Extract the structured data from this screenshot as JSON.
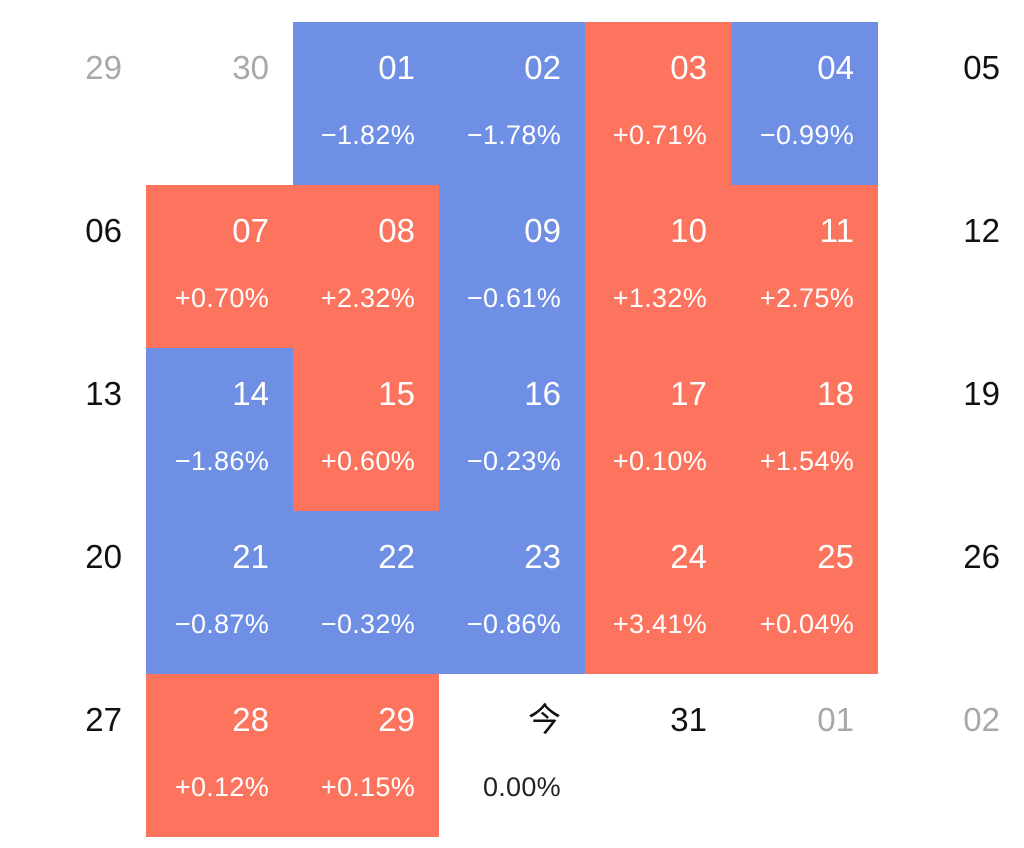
{
  "calendar": {
    "colors": {
      "up": "#fc735e",
      "down": "#6e8fe4",
      "other_month_text": "#a8a8a8"
    },
    "cells": [
      {
        "day": "29",
        "pct": "",
        "status": "other"
      },
      {
        "day": "30",
        "pct": "",
        "status": "other"
      },
      {
        "day": "01",
        "pct": "−1.82%",
        "status": "down"
      },
      {
        "day": "02",
        "pct": "−1.78%",
        "status": "down"
      },
      {
        "day": "03",
        "pct": "+0.71%",
        "status": "up"
      },
      {
        "day": "04",
        "pct": "−0.99%",
        "status": "down"
      },
      {
        "day": "05",
        "pct": "",
        "status": "none"
      },
      {
        "day": "06",
        "pct": "",
        "status": "none"
      },
      {
        "day": "07",
        "pct": "+0.70%",
        "status": "up"
      },
      {
        "day": "08",
        "pct": "+2.32%",
        "status": "up"
      },
      {
        "day": "09",
        "pct": "−0.61%",
        "status": "down"
      },
      {
        "day": "10",
        "pct": "+1.32%",
        "status": "up"
      },
      {
        "day": "11",
        "pct": "+2.75%",
        "status": "up"
      },
      {
        "day": "12",
        "pct": "",
        "status": "none"
      },
      {
        "day": "13",
        "pct": "",
        "status": "none"
      },
      {
        "day": "14",
        "pct": "−1.86%",
        "status": "down"
      },
      {
        "day": "15",
        "pct": "+0.60%",
        "status": "up"
      },
      {
        "day": "16",
        "pct": "−0.23%",
        "status": "down"
      },
      {
        "day": "17",
        "pct": "+0.10%",
        "status": "up"
      },
      {
        "day": "18",
        "pct": "+1.54%",
        "status": "up"
      },
      {
        "day": "19",
        "pct": "",
        "status": "none"
      },
      {
        "day": "20",
        "pct": "",
        "status": "none"
      },
      {
        "day": "21",
        "pct": "−0.87%",
        "status": "down"
      },
      {
        "day": "22",
        "pct": "−0.32%",
        "status": "down"
      },
      {
        "day": "23",
        "pct": "−0.86%",
        "status": "down"
      },
      {
        "day": "24",
        "pct": "+3.41%",
        "status": "up"
      },
      {
        "day": "25",
        "pct": "+0.04%",
        "status": "up"
      },
      {
        "day": "26",
        "pct": "",
        "status": "none"
      },
      {
        "day": "27",
        "pct": "",
        "status": "none"
      },
      {
        "day": "28",
        "pct": "+0.12%",
        "status": "up"
      },
      {
        "day": "29",
        "pct": "+0.15%",
        "status": "up"
      },
      {
        "day": "今",
        "pct": "0.00%",
        "status": "flat"
      },
      {
        "day": "31",
        "pct": "",
        "status": "none"
      },
      {
        "day": "01",
        "pct": "",
        "status": "other"
      },
      {
        "day": "02",
        "pct": "",
        "status": "other"
      }
    ]
  }
}
